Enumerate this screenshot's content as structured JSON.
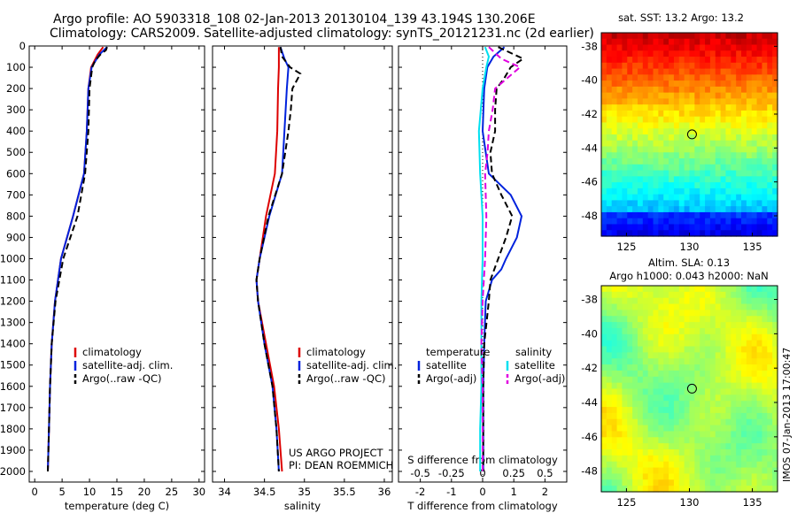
{
  "title": {
    "line1": "Argo profile: AO 5903318_108 02-Jan-2013 20130104_139 43.194S 130.206E",
    "line2": "Climatology: CARS2009. Satellite-adjusted climatology: synTS_20121231.nc (2d earlier)"
  },
  "footer": {
    "project": "US ARGO PROJECT",
    "pi": "PI: DEAN ROEMMICH",
    "stamp": "IMOS 07-Jan-2013 17:00:47"
  },
  "colors": {
    "climatology": "#dd0000",
    "satellite": "#0022dd",
    "argo": "#000000",
    "sat_salinity": "#00e0f0",
    "argo_salinity": "#e000e0"
  },
  "chart_data": [
    {
      "type": "line",
      "name": "temperature",
      "xlabel": "temperature (deg C)",
      "xlim": [
        -1,
        31
      ],
      "xticks": [
        0,
        5,
        10,
        15,
        20,
        25,
        30
      ],
      "ylim": [
        0,
        2050
      ],
      "yticks": [
        0,
        100,
        200,
        300,
        400,
        500,
        600,
        700,
        800,
        900,
        1000,
        1100,
        1200,
        1300,
        1400,
        1500,
        1600,
        1700,
        1800,
        1900,
        2000
      ],
      "legend_position": "bottom-right",
      "series": [
        {
          "name": "climatology",
          "style": "solid",
          "depth": [
            5,
            40,
            100,
            200,
            400,
            600,
            800,
            1000,
            1200,
            1400,
            1600,
            1800,
            2000
          ],
          "values": [
            12.5,
            11.5,
            10.3,
            9.8,
            9.5,
            9.0,
            7.0,
            4.8,
            3.7,
            3.1,
            2.8,
            2.6,
            2.4
          ]
        },
        {
          "name": "satellite-adj. clim.",
          "style": "solid",
          "depth": [
            5,
            40,
            100,
            200,
            400,
            600,
            800,
            1000,
            1200,
            1400,
            1600,
            1800,
            2000
          ],
          "values": [
            13.2,
            11.8,
            10.4,
            9.8,
            9.5,
            9.0,
            7.0,
            4.8,
            3.7,
            3.1,
            2.8,
            2.6,
            2.4
          ]
        },
        {
          "name": "Argo(..raw -QC)",
          "style": "dashed",
          "depth": [
            5,
            20,
            40,
            70,
            100,
            200,
            400,
            600,
            800,
            1000,
            1200,
            1400,
            1600,
            1800,
            2000
          ],
          "values": [
            13.2,
            13.0,
            12.0,
            11.0,
            10.5,
            10.0,
            9.8,
            9.2,
            7.8,
            5.2,
            3.8,
            3.1,
            2.8,
            2.6,
            2.4
          ]
        }
      ]
    },
    {
      "type": "line",
      "name": "salinity",
      "xlabel": "salinity",
      "xlim": [
        33.85,
        36.1
      ],
      "xticks": [
        34,
        34.5,
        35,
        35.5,
        36
      ],
      "ylim": [
        0,
        2050
      ],
      "legend_position": "bottom-right",
      "series": [
        {
          "name": "climatology",
          "style": "solid",
          "depth": [
            5,
            100,
            200,
            400,
            600,
            800,
            1000,
            1100,
            1200,
            1400,
            1600,
            1800,
            2000
          ],
          "values": [
            34.68,
            34.68,
            34.67,
            34.66,
            34.63,
            34.52,
            34.44,
            34.4,
            34.42,
            34.52,
            34.62,
            34.68,
            34.72
          ]
        },
        {
          "name": "satellite-adj. clim.",
          "style": "solid",
          "depth": [
            5,
            60,
            100,
            200,
            400,
            600,
            800,
            1000,
            1100,
            1200,
            1400,
            1600,
            1800,
            2000
          ],
          "values": [
            34.7,
            34.75,
            34.8,
            34.78,
            34.75,
            34.72,
            34.56,
            34.44,
            34.4,
            34.42,
            34.5,
            34.6,
            34.65,
            34.68
          ]
        },
        {
          "name": "Argo(..raw -QC)",
          "style": "dashed",
          "depth": [
            5,
            50,
            100,
            130,
            200,
            300,
            400,
            600,
            800,
            1000,
            1100,
            1200,
            1400,
            1600,
            1800,
            2000
          ],
          "values": [
            34.7,
            34.72,
            34.82,
            34.95,
            34.85,
            34.83,
            34.8,
            34.72,
            34.55,
            34.44,
            34.4,
            34.42,
            34.5,
            34.6,
            34.65,
            34.68
          ]
        }
      ]
    },
    {
      "type": "line",
      "name": "differences",
      "xlabel": "T difference from climatology",
      "xlabel_top": "S difference from climatology",
      "xlim": [
        -2.7,
        2.7
      ],
      "xticks": [
        -2,
        -1,
        0,
        1,
        2
      ],
      "xticks_s": [
        -0.5,
        -0.25,
        0,
        0.25,
        0.5
      ],
      "ylim": [
        0,
        2050
      ],
      "legend_position": "bottom",
      "legend_headers": [
        "temperature",
        "salinity"
      ],
      "series": [
        {
          "name": "satellite",
          "group": "temperature",
          "style": "solid",
          "depth": [
            5,
            50,
            100,
            200,
            400,
            600,
            700,
            800,
            900,
            1000,
            1050,
            1100,
            1200,
            1400,
            1600,
            1800,
            2000
          ],
          "values": [
            0.7,
            0.35,
            0.15,
            0.05,
            0.0,
            0.2,
            0.9,
            1.25,
            1.1,
            0.75,
            0.6,
            0.3,
            0.1,
            0.05,
            0.02,
            0.02,
            0.02
          ]
        },
        {
          "name": "Argo(-adj)",
          "group": "temperature",
          "style": "dashed",
          "depth": [
            5,
            60,
            100,
            150,
            200,
            300,
            400,
            500,
            600,
            700,
            800,
            900,
            1000,
            1100,
            1200,
            1400,
            1600,
            1800,
            2000
          ],
          "values": [
            0.5,
            1.3,
            0.9,
            0.7,
            0.45,
            0.4,
            0.4,
            0.25,
            0.3,
            0.6,
            0.95,
            0.75,
            0.5,
            0.25,
            0.2,
            0.05,
            0.02,
            0.02,
            0.02
          ]
        },
        {
          "name": "satellite",
          "group": "salinity",
          "style": "solid",
          "depth": [
            5,
            50,
            100,
            200,
            400,
            600,
            800,
            1000,
            1200,
            1400,
            1600,
            1800,
            2000
          ],
          "values": [
            0.02,
            0.05,
            0.03,
            0.0,
            -0.03,
            -0.02,
            0.0,
            0.0,
            -0.01,
            -0.01,
            -0.01,
            -0.02,
            -0.02
          ]
        },
        {
          "name": "Argo(-adj)",
          "group": "salinity",
          "style": "dashed",
          "depth": [
            5,
            60,
            100,
            150,
            200,
            300,
            400,
            500,
            600,
            800,
            1000,
            1200,
            1400,
            1600,
            1800,
            2000
          ],
          "values": [
            0.05,
            0.15,
            0.3,
            0.2,
            0.1,
            0.08,
            0.05,
            0.04,
            0.02,
            0.03,
            0.02,
            0.0,
            -0.01,
            0.0,
            0.0,
            0.0
          ]
        }
      ]
    },
    {
      "type": "heatmap",
      "name": "sst_map",
      "title": "sat. SST: 13.2  Argo: 13.2",
      "xlim": [
        123,
        137
      ],
      "ylim": [
        -49.2,
        -37.2
      ],
      "xticks": [
        125,
        130,
        135
      ],
      "yticks": [
        -38,
        -40,
        -42,
        -44,
        -46,
        -48
      ],
      "marker": {
        "lon": 130.206,
        "lat": -43.194
      },
      "colormap": "jet"
    },
    {
      "type": "heatmap",
      "name": "sla_map",
      "title_line1": "Altim. SLA: 0.13",
      "title_line2": "Argo h1000: 0.043 h2000: NaN",
      "xlim": [
        123,
        137
      ],
      "ylim": [
        -49.2,
        -37.2
      ],
      "xticks": [
        125,
        130,
        135
      ],
      "yticks": [
        -38,
        -40,
        -42,
        -44,
        -46,
        -48
      ],
      "marker": {
        "lon": 130.206,
        "lat": -43.194
      },
      "colormap": "jet"
    }
  ]
}
